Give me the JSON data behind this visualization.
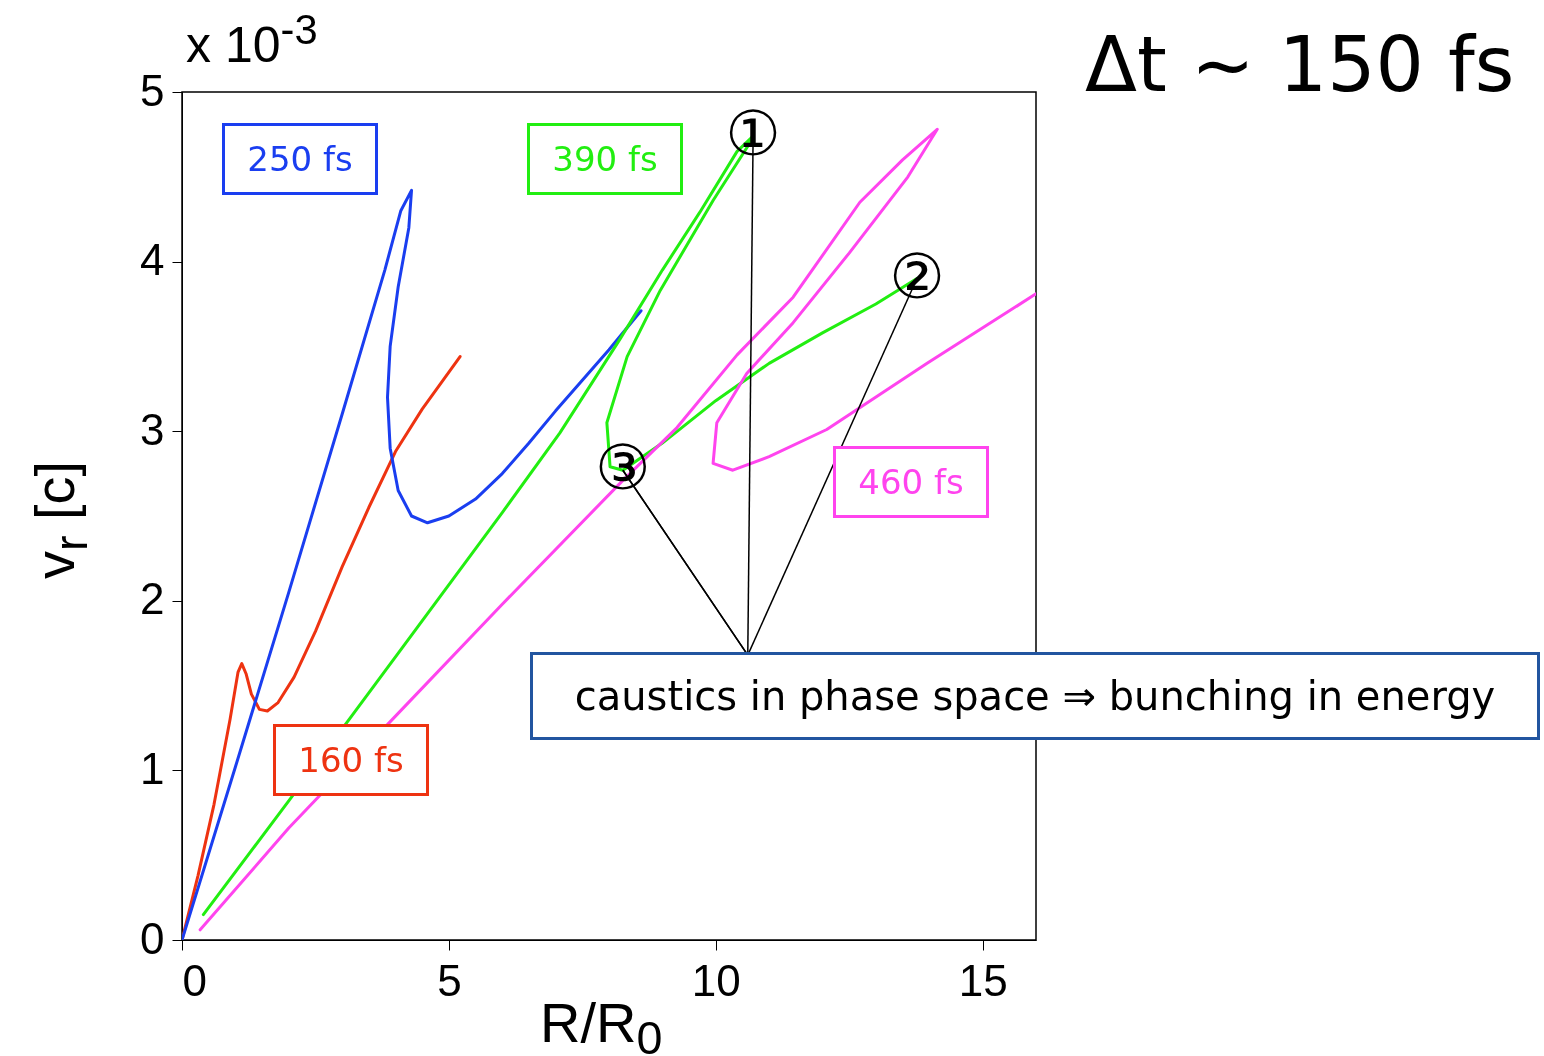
{
  "chart_data": {
    "type": "line",
    "title": "Δt ~ 150 fs",
    "xlabel": "R/R$_{0}$",
    "ylabel": "v$_{r}$ [c]",
    "xlim": [
      0,
      16
    ],
    "xticks": [
      0,
      5,
      10,
      15
    ],
    "ylim": [
      0,
      5
    ],
    "yticks": [
      0,
      1,
      2,
      3,
      4,
      5
    ],
    "line_style": "solid",
    "marker": "none",
    "series": [
      {
        "name": "160 fs",
        "color": "#ee3311",
        "x": [
          0,
          0.3,
          0.6,
          0.9,
          1.05,
          1.12,
          1.2,
          1.3,
          1.45,
          1.6,
          1.8,
          2.1,
          2.5,
          3,
          3.5,
          4,
          4.5,
          5.21
        ],
        "values": [
          0,
          0.38,
          0.8,
          1.3,
          1.58,
          1.63,
          1.57,
          1.45,
          1.36,
          1.35,
          1.4,
          1.55,
          1.82,
          2.2,
          2.55,
          2.88,
          3.13,
          3.44
        ]
      },
      {
        "name": "250 fs",
        "color": "#1a3ef0",
        "x": [
          0,
          1,
          2,
          3,
          3.8,
          4.1,
          4.3,
          4.25,
          4.05,
          3.9,
          3.85,
          3.9,
          4.05,
          4.3,
          4.6,
          5,
          5.5,
          6,
          6.5,
          7,
          7.5,
          8,
          8.6
        ],
        "values": [
          0,
          1.02,
          2.05,
          3.1,
          3.95,
          4.3,
          4.42,
          4.2,
          3.85,
          3.5,
          3.2,
          2.9,
          2.65,
          2.5,
          2.46,
          2.5,
          2.6,
          2.75,
          2.93,
          3.12,
          3.3,
          3.48,
          3.71
        ]
      },
      {
        "name": "390 fs",
        "color": "#22ee11",
        "x": [
          0.4,
          2,
          4,
          6,
          7.08,
          8.2,
          9,
          9.7,
          10.4,
          10.7,
          10.6,
          9.95,
          8.96,
          8.34,
          7.96,
          8.02,
          8.26,
          9,
          10,
          11,
          12,
          13,
          13.77
        ],
        "values": [
          0.15,
          0.82,
          1.67,
          2.52,
          2.99,
          3.54,
          3.95,
          4.29,
          4.65,
          4.74,
          4.68,
          4.36,
          3.83,
          3.44,
          3.05,
          2.79,
          2.77,
          2.93,
          3.18,
          3.4,
          3.58,
          3.75,
          3.9
        ]
      },
      {
        "name": "460 fs",
        "color": "#ff44ee",
        "x": [
          0.34,
          2,
          4,
          6,
          8.26,
          9.27,
          10.4,
          11.45,
          12.7,
          13.5,
          14.15,
          13.6,
          12.5,
          11.45,
          10.58,
          10.02,
          9.95,
          10.32,
          11,
          12.08,
          13.96,
          16
        ],
        "values": [
          0.06,
          0.66,
          1.32,
          1.98,
          2.71,
          3.02,
          3.45,
          3.79,
          4.35,
          4.6,
          4.78,
          4.5,
          4.05,
          3.64,
          3.34,
          3.05,
          2.81,
          2.77,
          2.85,
          3.01,
          3.4,
          3.81
        ]
      }
    ],
    "annotations": [
      "x 10$^{-3}$",
      {
        "text": "①",
        "x": 10.7,
        "y": 4.74
      },
      {
        "text": "②",
        "x": 13.77,
        "y": 3.9
      },
      {
        "text": "③",
        "x": 8.26,
        "y": 2.77
      },
      {
        "text": "caustics in phase space ⇒ bunching in energy",
        "x": 8.26,
        "y": 2.77
      }
    ]
  }
}
